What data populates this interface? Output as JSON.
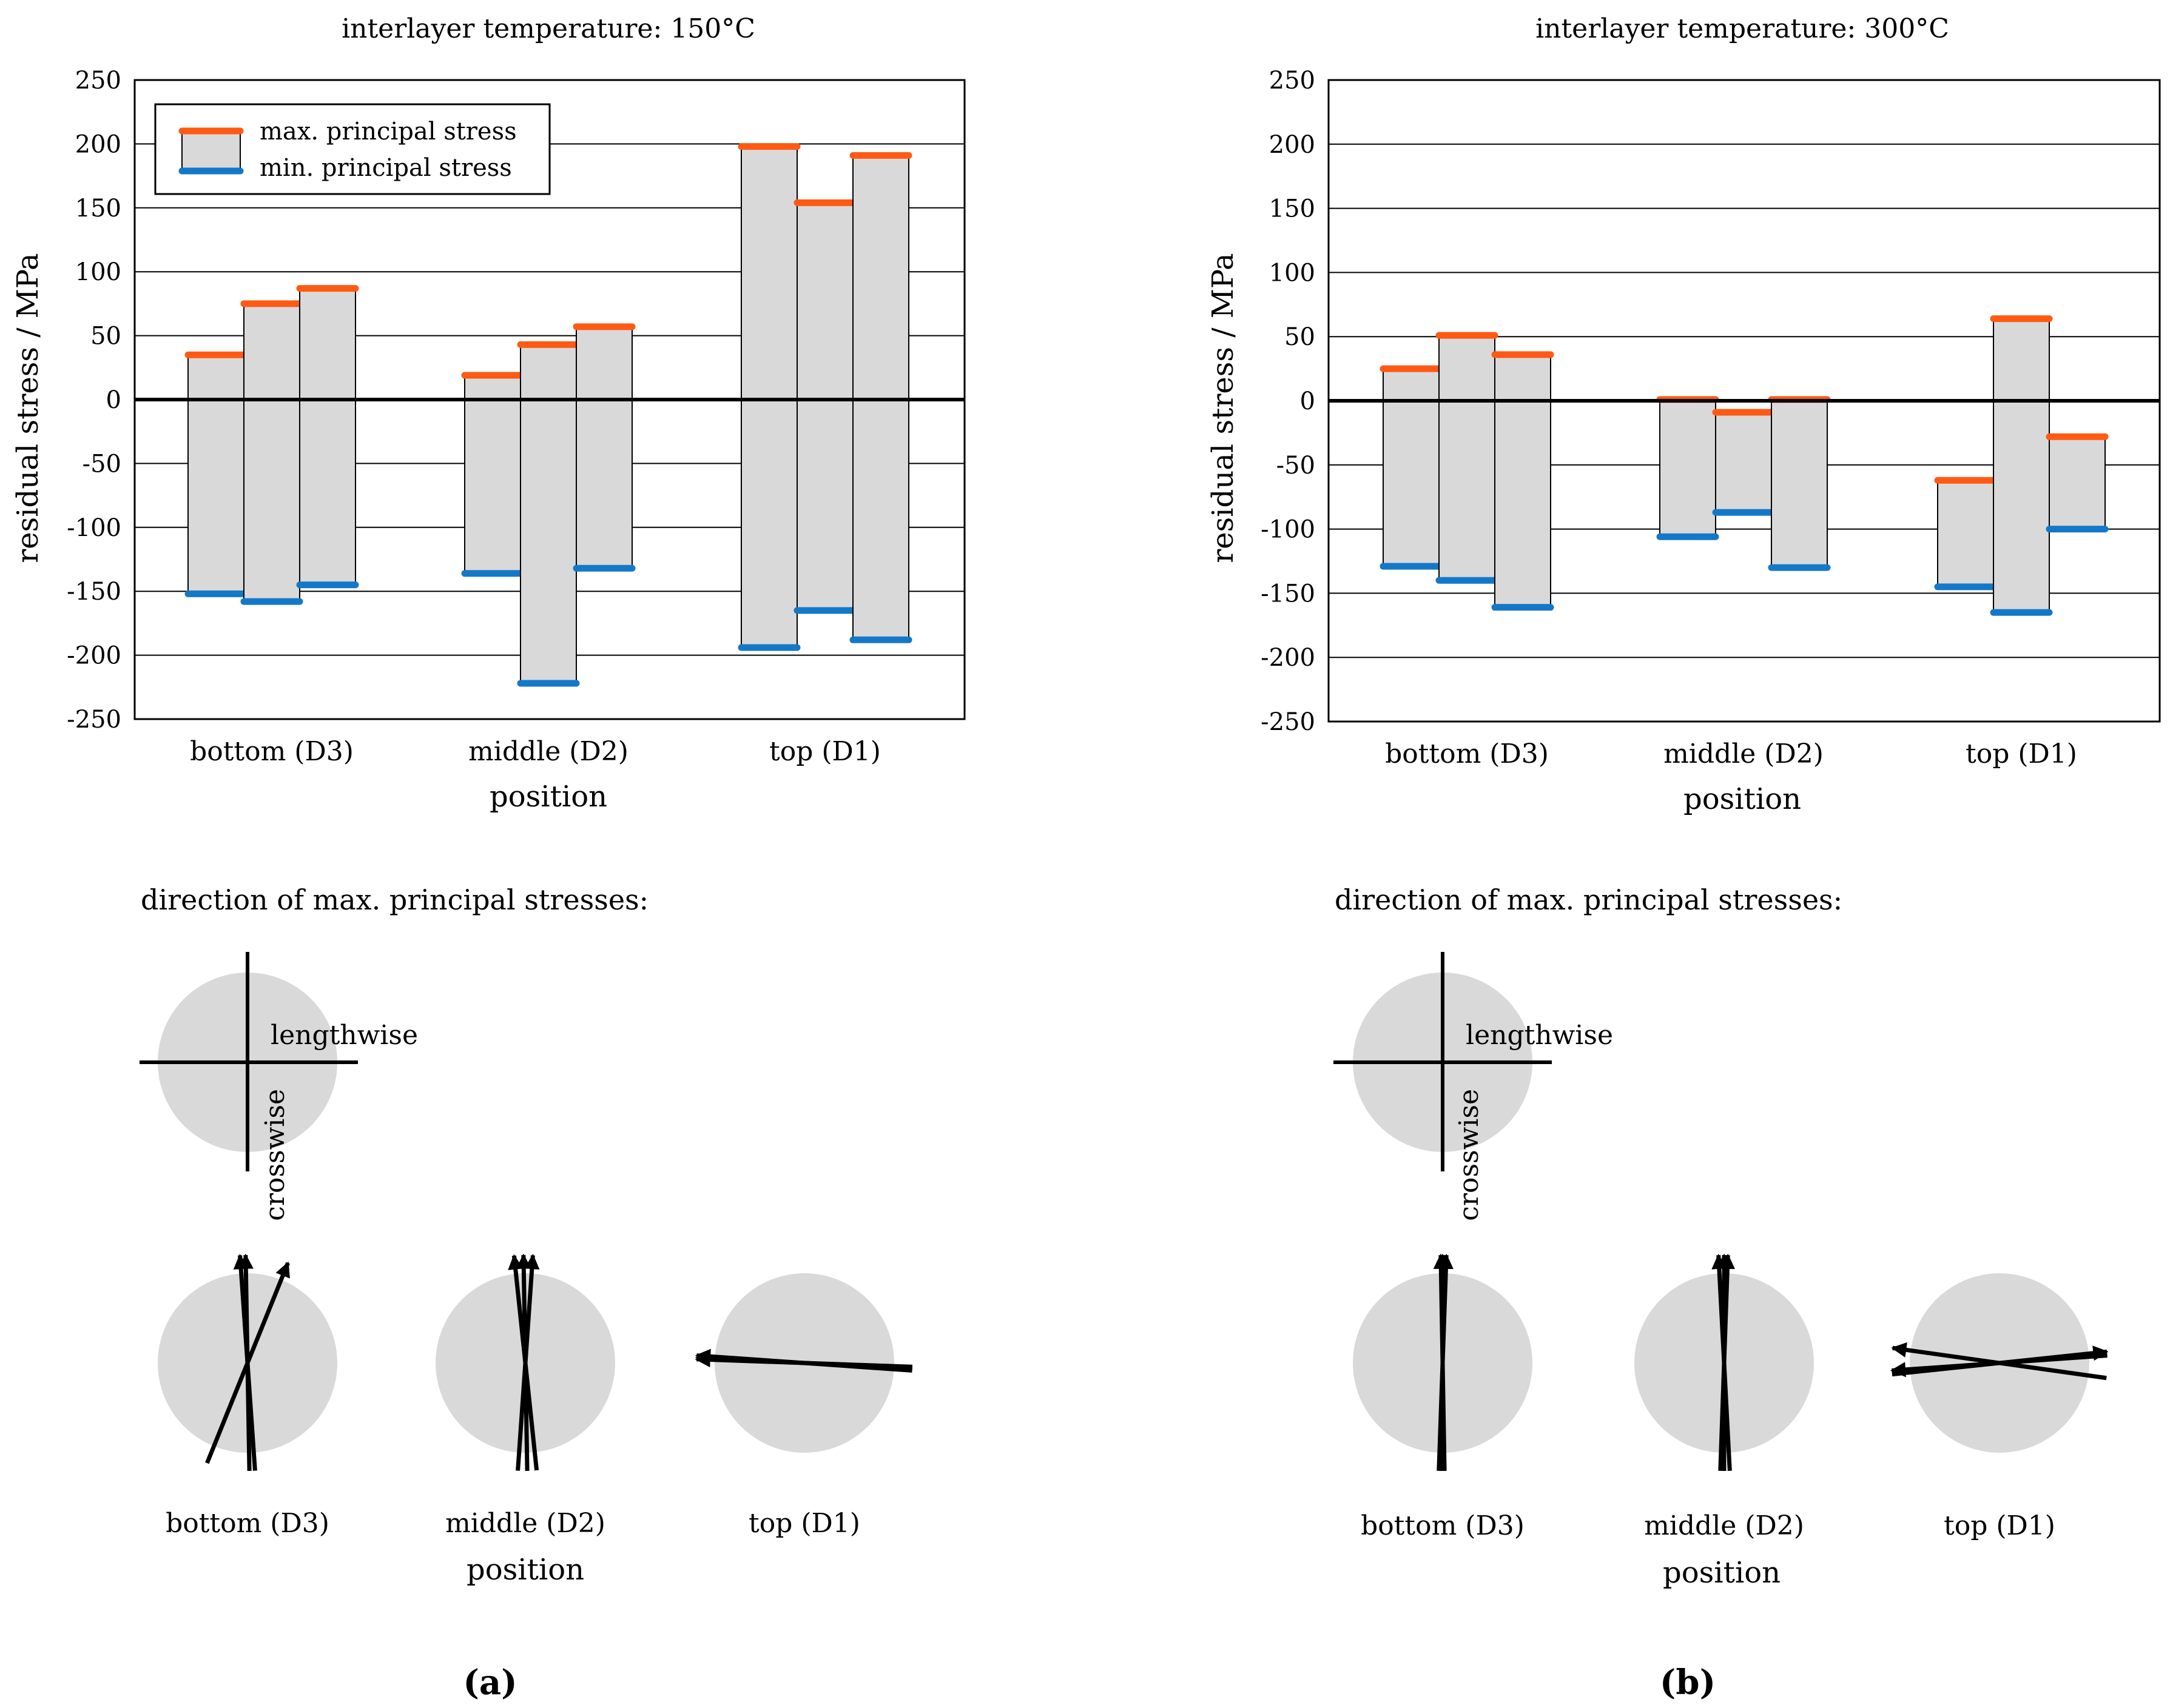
{
  "figure": {
    "panel_labels": [
      "(a)",
      "(b)"
    ],
    "direction_heading": "direction of max. principal stresses:",
    "compass_labels": {
      "lengthwise": "lengthwise",
      "crosswise": "crosswise"
    }
  },
  "chart_data": [
    {
      "type": "floating-bar",
      "title": "interlayer temperature: 150°C",
      "xlabel": "position",
      "ylabel": "residual stress / MPa",
      "ylim": [
        -250,
        250
      ],
      "yticks": [
        250,
        200,
        150,
        100,
        50,
        0,
        -50,
        -100,
        -150,
        -200,
        -250
      ],
      "grid": true,
      "legend": {
        "placement": "top-left",
        "entries": [
          "max. principal stress",
          "min. principal stress"
        ]
      },
      "colors": {
        "max": "#ff5a14",
        "min": "#1478c8",
        "bar": "#d9d9d9"
      },
      "categories": [
        "bottom (D3)",
        "middle (D2)",
        "top (D1)"
      ],
      "series": [
        {
          "name": "max. principal stress",
          "values": [
            [
              35,
              75,
              87
            ],
            [
              19,
              43,
              57
            ],
            [
              198,
              154,
              191
            ]
          ]
        },
        {
          "name": "min. principal stress",
          "values": [
            [
              -152,
              -158,
              -145
            ],
            [
              -136,
              -222,
              -132
            ],
            [
              -194,
              -165,
              -188
            ]
          ]
        }
      ]
    },
    {
      "type": "floating-bar",
      "title": "interlayer temperature: 300°C",
      "xlabel": "position",
      "ylabel": "residual stress / MPa",
      "ylim": [
        -250,
        250
      ],
      "yticks": [
        250,
        200,
        150,
        100,
        50,
        0,
        -50,
        -100,
        -150,
        -200,
        -250
      ],
      "grid": true,
      "colors": {
        "max": "#ff5a14",
        "min": "#1478c8",
        "bar": "#d9d9d9"
      },
      "categories": [
        "bottom (D3)",
        "middle (D2)",
        "top (D1)"
      ],
      "series": [
        {
          "name": "max. principal stress",
          "values": [
            [
              25,
              51,
              36
            ],
            [
              1,
              -9,
              1
            ],
            [
              -62,
              64,
              -28
            ]
          ]
        },
        {
          "name": "min. principal stress",
          "values": [
            [
              -129,
              -140,
              -161
            ],
            [
              -106,
              -87,
              -130
            ],
            [
              -145,
              -165,
              -100
            ]
          ]
        }
      ]
    }
  ],
  "directions": [
    {
      "xlabel": "position",
      "categories": [
        "bottom (D3)",
        "middle (D2)",
        "top (D1)"
      ],
      "angles_deg_from_lengthwise": [
        [
          94,
          91,
          68
        ],
        [
          86,
          96,
          91
        ],
        [
          178,
          177,
          176
        ]
      ]
    },
    {
      "xlabel": "position",
      "categories": [
        "bottom (D3)",
        "middle (D2)",
        "top (D1)"
      ],
      "angles_deg_from_lengthwise": [
        [
          88,
          90,
          91
        ],
        [
          93,
          88,
          90
        ],
        [
          172,
          6,
          184
        ]
      ]
    }
  ]
}
